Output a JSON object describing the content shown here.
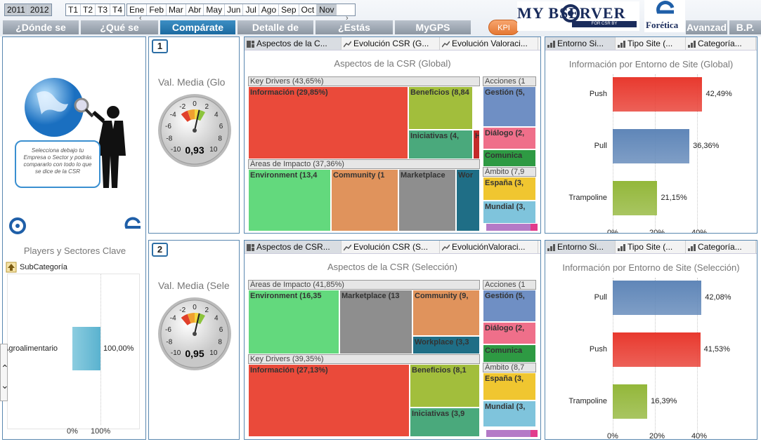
{
  "years": [
    "2011",
    "2012"
  ],
  "quarters": [
    "T1",
    "T2",
    "T3",
    "T4"
  ],
  "months": [
    "Ene",
    "Feb",
    "Mar",
    "Abr",
    "May",
    "Jun",
    "Jul",
    "Ago",
    "Sep",
    "Oct",
    "Nov"
  ],
  "tabs": [
    "¿Dónde se",
    "¿Qué se",
    "Compárate",
    "Detalle de",
    "¿Estás",
    "MyGPS",
    "Avanzad",
    "B.P."
  ],
  "kpi": "KPI",
  "logo_obs": {
    "text": "MY BSERVER",
    "sub": "FOR CSR BY"
  },
  "logo_for": {
    "text": "Forética"
  },
  "left": {
    "bubble": "Selecciona debajo tu Empresa o Sector y podrás compararlo con todo lo que se dice de la CSR",
    "players_title": "Players y Sectores Clave",
    "subcat": "SubCategoría",
    "bar_label": "Agroalimentario",
    "bar_value": "100,00%",
    "axis": [
      "0%",
      "100%"
    ]
  },
  "gauges": [
    {
      "num": "1",
      "title": "Val. Media (Glo",
      "value": "0,93",
      "ticks": [
        "-10",
        "-8",
        "-6",
        "-4",
        "-2",
        "0",
        "2",
        "4",
        "6",
        "8",
        "10"
      ],
      "reading": 0.93
    },
    {
      "num": "2",
      "title": "Val. Media (Sele",
      "value": "0,95",
      "ticks": [
        "-10",
        "-8",
        "-6",
        "-4",
        "-2",
        "0",
        "2",
        "4",
        "6",
        "8",
        "10"
      ],
      "reading": 0.95
    }
  ],
  "treemaps": [
    {
      "tabs": [
        "Aspectos de la C...",
        "Evolución CSR (G...",
        "Evolución Valoraci..."
      ],
      "title": "Aspectos de la CSR (Global)",
      "headers": [
        "Key Drivers (43,65%)",
        "Áreas de Impacto (37,36%)",
        "Acciones (1",
        "Ámbito (7,9"
      ],
      "cells": [
        "Información (29,85%)",
        "Beneficios (8,84",
        "Iniciativas (4,",
        "H",
        "Environment (13,4",
        "Community (1",
        "Marketplace",
        "Wor",
        "Gestión (5,",
        "Diálogo (2,",
        "Comunica",
        "España (3,",
        "Mundial (3,"
      ]
    },
    {
      "tabs": [
        "Aspectos de CSR...",
        "Evolución CSR (S...",
        "EvoluciónValoraci..."
      ],
      "title": "Aspectos de la CSR (Selección)",
      "headers": [
        "Áreas de Impacto (41,85%)",
        "Key Drivers (39,35%)",
        "Acciones (1",
        "Ámbito (8,7"
      ],
      "cells": [
        "Environment (16,35",
        "Marketplace (13",
        "Community (9,",
        "Workplace (3,3",
        "Información (27,13%)",
        "Beneficios (8,1",
        "Iniciativas (3,9",
        "Gestión (5,",
        "Diálogo (2,",
        "Comunica",
        "España (3,",
        "Mundial (3,"
      ]
    }
  ],
  "barcharts": [
    {
      "tabs": [
        "Entorno Si...",
        "Tipo Site (...",
        "Categoría..."
      ],
      "title": "Información por Entorno de Site (Global)",
      "bars": [
        {
          "name": "Push",
          "value": 42.49,
          "label": "42,49%",
          "color": "#e8392e"
        },
        {
          "name": "Pull",
          "value": 36.36,
          "label": "36,36%",
          "color": "#5f86b8"
        },
        {
          "name": "Trampoline",
          "value": 21.15,
          "label": "21,15%",
          "color": "#93b73a"
        }
      ],
      "axis": [
        "0%",
        "20%",
        "40%"
      ]
    },
    {
      "tabs": [
        "Entorno Si...",
        "Tipo Site (...",
        "Categoría..."
      ],
      "title": "Información por Entorno de Site (Selección)",
      "bars": [
        {
          "name": "Pull",
          "value": 42.08,
          "label": "42,08%",
          "color": "#5f86b8"
        },
        {
          "name": "Push",
          "value": 41.53,
          "label": "41,53%",
          "color": "#e8392e"
        },
        {
          "name": "Trampoline",
          "value": 16.39,
          "label": "16,39%",
          "color": "#93b73a"
        }
      ],
      "axis": [
        "0%",
        "20%",
        "40%"
      ]
    }
  ]
}
